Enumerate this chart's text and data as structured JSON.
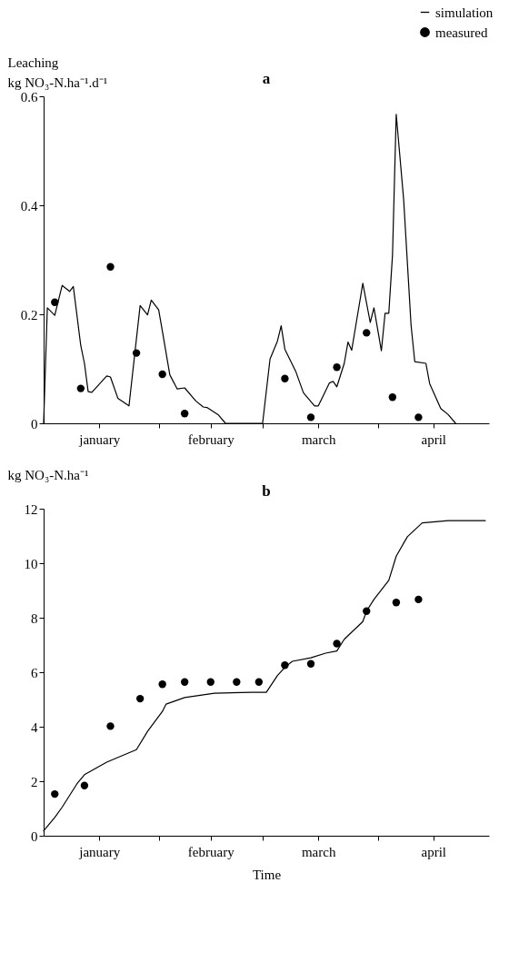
{
  "chart_data": [
    {
      "type": "line",
      "title": "a",
      "ylabel": "Leaching\nkg NO₃-N.ha⁻¹.d⁻¹",
      "xlim": [
        "--01-01",
        "--05-01"
      ],
      "xticks": [
        {
          "value": "--01-16",
          "label": "january"
        },
        {
          "value": "--02-01",
          "label": null
        },
        {
          "value": "--02-15",
          "label": "february"
        },
        {
          "value": "--03-01",
          "label": null
        },
        {
          "value": "--03-16",
          "label": "march"
        },
        {
          "value": "--04-01",
          "label": null
        },
        {
          "value": "--04-16",
          "label": "april"
        }
      ],
      "ylim": [
        0,
        0.6
      ],
      "yticks": [
        0,
        0.2,
        0.4,
        0.6
      ],
      "legend": "top right",
      "series": [
        {
          "name": "simulation",
          "type": "line",
          "color": "#000000",
          "x": [
            "--01-01",
            "--01-02",
            "--01-04",
            "--01-06",
            "--01-08",
            "--01-09",
            "--01-11",
            "--01-12",
            "--01-13",
            "--01-14",
            "--01-18",
            "--01-19",
            "--01-21",
            "--01-24",
            "--01-27",
            "--01-29",
            "--01-30",
            "--02-01",
            "--02-02",
            "--02-04",
            "--02-06",
            "--02-08",
            "--02-11",
            "--02-13",
            "--02-14",
            "--02-17",
            "--02-19",
            "--03-01",
            "--03-03",
            "--03-05",
            "--03-06",
            "--03-07",
            "--03-10",
            "--03-12",
            "--03-15",
            "--03-16",
            "--03-17",
            "--03-19",
            "--03-20",
            "--03-21",
            "--03-23",
            "--03-24",
            "--03-25",
            "--03-26",
            "--03-28",
            "--03-30",
            "--03-31",
            "--04-02",
            "--04-03",
            "--04-04",
            "--04-05",
            "--04-06",
            "--04-08",
            "--04-10",
            "--04-11",
            "--04-14",
            "--04-15",
            "--04-18",
            "--04-20",
            "--04-22"
          ],
          "values": [
            0,
            0.212,
            0.198,
            0.253,
            0.242,
            0.251,
            0.143,
            0.11,
            0.058,
            0.057,
            0.087,
            0.085,
            0.046,
            0.032,
            0.216,
            0.199,
            0.226,
            0.208,
            0.169,
            0.089,
            0.063,
            0.065,
            0.041,
            0.03,
            0.029,
            0.016,
            0,
            0,
            0.118,
            0.151,
            0.179,
            0.136,
            0.094,
            0.056,
            0.032,
            0.032,
            0.046,
            0.074,
            0.077,
            0.067,
            0.11,
            0.149,
            0.134,
            0.175,
            0.257,
            0.185,
            0.212,
            0.133,
            0.202,
            0.202,
            0.309,
            0.567,
            0.411,
            0.18,
            0.113,
            0.11,
            0.073,
            0.027,
            0.016,
            0
          ]
        },
        {
          "name": "measured",
          "type": "scatter",
          "color": "#000000",
          "x": [
            "--01-04",
            "--01-11",
            "--01-19",
            "--01-26",
            "--02-02",
            "--02-08",
            "--03-07",
            "--03-14",
            "--03-21",
            "--03-29",
            "--04-05",
            "--04-12"
          ],
          "values": [
            0.222,
            0.064,
            0.287,
            0.129,
            0.09,
            0.018,
            0.082,
            0.011,
            0.103,
            0.166,
            0.048,
            0.011
          ]
        }
      ]
    },
    {
      "type": "line",
      "title": "b",
      "ylabel": "kg NO₃-N.ha⁻¹",
      "xlabel": "Time",
      "xlim": [
        "--01-01",
        "--05-01"
      ],
      "xticks": [
        {
          "value": "--01-16",
          "label": "january"
        },
        {
          "value": "--02-01",
          "label": null
        },
        {
          "value": "--02-15",
          "label": "february"
        },
        {
          "value": "--03-01",
          "label": null
        },
        {
          "value": "--03-16",
          "label": "march"
        },
        {
          "value": "--04-01",
          "label": null
        },
        {
          "value": "--04-16",
          "label": "april"
        }
      ],
      "ylim": [
        0,
        12
      ],
      "yticks": [
        0,
        2,
        4,
        6,
        8,
        10,
        12
      ],
      "series": [
        {
          "type": "line",
          "color": "#000000",
          "x": [
            "--01-01",
            "--01-04",
            "--01-06",
            "--01-10",
            "--01-12",
            "--01-18",
            "--01-26",
            "--01-29",
            "--02-02",
            "--02-03",
            "--02-08",
            "--02-16",
            "--02-26",
            "--03-02",
            "--03-05",
            "--03-07",
            "--03-09",
            "--03-14",
            "--03-18",
            "--03-21",
            "--03-23",
            "--03-28",
            "--03-29",
            "--03-31",
            "--04-04",
            "--04-06",
            "--04-09",
            "--04-13",
            "--04-20",
            "--04-30"
          ],
          "values": [
            0.18,
            0.67,
            1.05,
            1.91,
            2.24,
            2.7,
            3.16,
            3.83,
            4.56,
            4.83,
            5.07,
            5.23,
            5.26,
            5.26,
            5.88,
            6.18,
            6.4,
            6.53,
            6.7,
            6.78,
            7.21,
            7.86,
            8.24,
            8.67,
            9.37,
            10.26,
            10.97,
            11.48,
            11.56,
            11.56
          ]
        },
        {
          "type": "scatter",
          "color": "#000000",
          "x": [
            "--01-04",
            "--01-12",
            "--01-19",
            "--01-27",
            "--02-02",
            "--02-08",
            "--02-15",
            "--02-22",
            "--02-28",
            "--03-07",
            "--03-14",
            "--03-21",
            "--03-29",
            "--04-06",
            "--04-12"
          ],
          "values": [
            1.53,
            1.84,
            4.02,
            5.03,
            5.56,
            5.64,
            5.64,
            5.64,
            5.64,
            6.26,
            6.31,
            7.05,
            8.24,
            8.56,
            8.67
          ]
        }
      ]
    }
  ]
}
